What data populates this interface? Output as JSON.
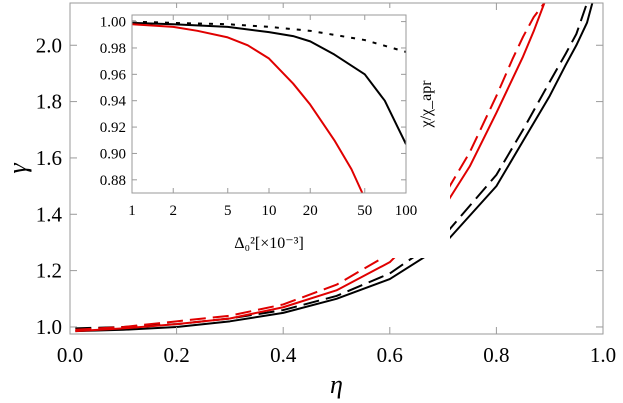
{
  "chart_data": [
    {
      "type": "line",
      "title": "",
      "xlabel": "η",
      "ylabel": "γ",
      "xlim": [
        0,
        1
      ],
      "ylim": [
        0.975,
        2.15
      ],
      "xticks": [
        0.0,
        0.2,
        0.4,
        0.6,
        0.8,
        1.0
      ],
      "xtick_labels": [
        "0.0",
        "0.2",
        "0.4",
        "0.6",
        "0.8",
        "1.0"
      ],
      "yticks": [
        1.0,
        1.2,
        1.4,
        1.6,
        1.8,
        2.0
      ],
      "ytick_labels": [
        "1.0",
        "1.2",
        "1.4",
        "1.6",
        "1.8",
        "2.0"
      ],
      "grid": false,
      "legend": "none",
      "series": [
        {
          "color": "#000000",
          "dash": "solid",
          "x": [
            0.01,
            0.1,
            0.2,
            0.3,
            0.4,
            0.5,
            0.6,
            0.7,
            0.8,
            0.85,
            0.9,
            0.93,
            0.95,
            0.97,
            0.98
          ],
          "y": [
            0.985,
            0.99,
            1.0,
            1.02,
            1.05,
            1.1,
            1.17,
            1.29,
            1.5,
            1.66,
            1.82,
            1.93,
            2.0,
            2.08,
            2.15
          ]
        },
        {
          "color": "#000000",
          "dash": "long-dash",
          "x": [
            0.01,
            0.1,
            0.2,
            0.3,
            0.4,
            0.5,
            0.6,
            0.7,
            0.8,
            0.85,
            0.9,
            0.93,
            0.95,
            0.97
          ],
          "y": [
            0.995,
            1.0,
            1.01,
            1.03,
            1.06,
            1.11,
            1.19,
            1.32,
            1.54,
            1.7,
            1.87,
            1.97,
            2.04,
            2.15
          ]
        },
        {
          "color": "#e00000",
          "dash": "solid",
          "x": [
            0.01,
            0.1,
            0.2,
            0.3,
            0.4,
            0.5,
            0.6,
            0.7,
            0.75,
            0.8,
            0.83,
            0.85,
            0.87,
            0.89
          ],
          "y": [
            0.985,
            0.995,
            1.01,
            1.03,
            1.07,
            1.13,
            1.23,
            1.42,
            1.57,
            1.76,
            1.88,
            1.96,
            2.05,
            2.15
          ]
        },
        {
          "color": "#e00000",
          "dash": "long-dash",
          "x": [
            0.01,
            0.1,
            0.2,
            0.3,
            0.4,
            0.5,
            0.6,
            0.7,
            0.75,
            0.8,
            0.83,
            0.85,
            0.87,
            0.89
          ],
          "y": [
            0.99,
            1.0,
            1.02,
            1.04,
            1.08,
            1.15,
            1.26,
            1.46,
            1.62,
            1.82,
            1.95,
            2.03,
            2.1,
            2.15
          ]
        }
      ]
    },
    {
      "type": "line",
      "title": "",
      "xlabel": "Δ₀²[×10⁻³]",
      "ylabel": "χ/χ_apr",
      "xscale": "log",
      "xlim": [
        1,
        100
      ],
      "ylim": [
        0.87,
        1.005
      ],
      "xticks": [
        1,
        2,
        5,
        10,
        20,
        50,
        100
      ],
      "xtick_labels": [
        "1",
        "2",
        "5",
        "10",
        "20",
        "50",
        "100"
      ],
      "yticks": [
        0.88,
        0.9,
        0.92,
        0.94,
        0.96,
        0.98,
        1.0
      ],
      "ytick_labels": [
        "0.88",
        "0.90",
        "0.92",
        "0.94",
        "0.96",
        "0.98",
        "1.00"
      ],
      "grid": false,
      "legend": "none",
      "series": [
        {
          "color": "#000000",
          "dash": "dotted",
          "x": [
            1,
            2,
            5,
            10,
            20,
            50,
            100
          ],
          "y": [
            1.0,
            0.999,
            0.998,
            0.996,
            0.993,
            0.986,
            0.977
          ]
        },
        {
          "color": "#000000",
          "dash": "solid",
          "x": [
            1,
            2,
            5,
            10,
            15,
            20,
            30,
            50,
            70,
            100
          ],
          "y": [
            0.999,
            0.998,
            0.996,
            0.992,
            0.989,
            0.985,
            0.975,
            0.96,
            0.94,
            0.907
          ]
        },
        {
          "color": "#e00000",
          "dash": "solid",
          "x": [
            1,
            2,
            3,
            5,
            7,
            10,
            15,
            20,
            30,
            40,
            48
          ],
          "y": [
            0.998,
            0.996,
            0.993,
            0.988,
            0.982,
            0.972,
            0.953,
            0.937,
            0.91,
            0.888,
            0.87
          ]
        }
      ]
    }
  ]
}
